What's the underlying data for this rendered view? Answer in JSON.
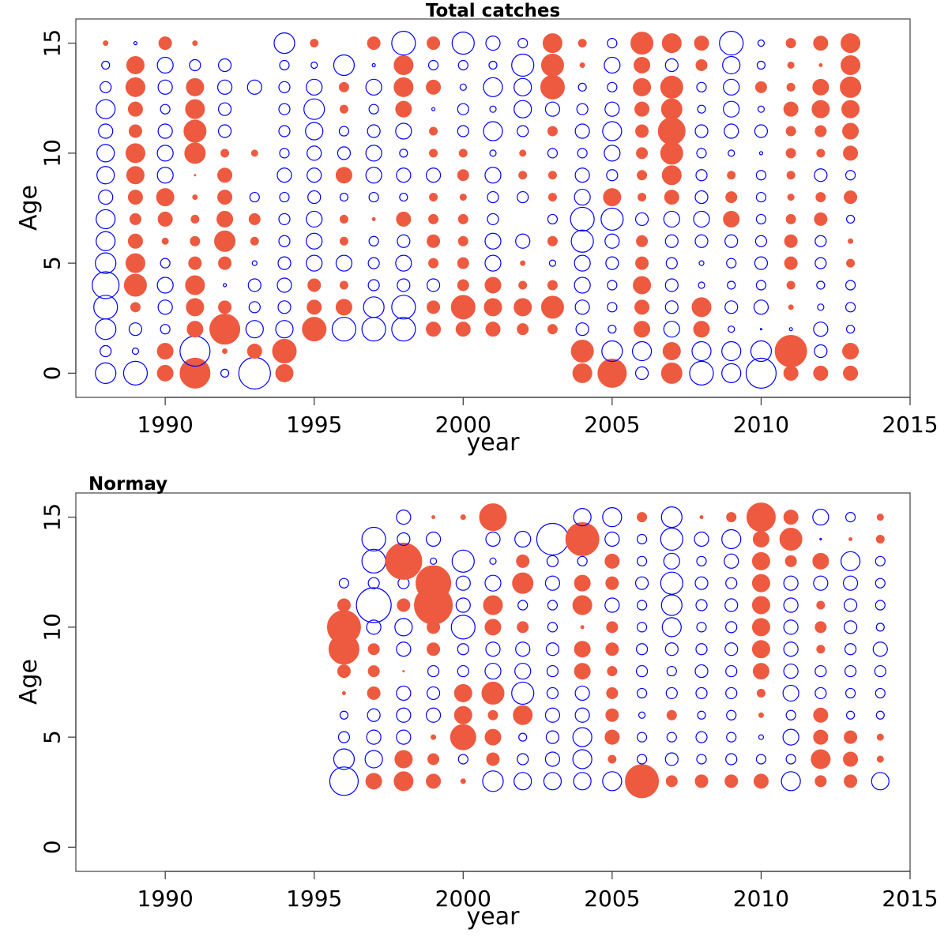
{
  "colors": {
    "positive": "#ee5a40",
    "negative": "#0000ff",
    "frame": "#444444"
  },
  "chart_data": [
    {
      "type": "scatter",
      "title": "Total catches",
      "xlabel": "year",
      "ylabel": "Age",
      "xlim": [
        1987,
        2015
      ],
      "ylim": [
        -1.1,
        16.1
      ],
      "xticks": [
        1990,
        1995,
        2000,
        2005,
        2010,
        2015
      ],
      "yticks": [
        0,
        5,
        10,
        15
      ],
      "encoding": "bubble size = magnitude; filled = positive; open = negative",
      "years": [
        1988,
        1989,
        1990,
        1991,
        1992,
        1993,
        1994,
        1995,
        1996,
        1997,
        1998,
        1999,
        2000,
        2001,
        2002,
        2003,
        2004,
        2005,
        2006,
        2007,
        2008,
        2009,
        2010,
        2011,
        2012,
        2013
      ],
      "ages": [
        0,
        1,
        2,
        3,
        4,
        5,
        6,
        7,
        8,
        9,
        10,
        11,
        12,
        13,
        14,
        15
      ],
      "magnitudes": [
        [
          -13,
          -7,
          -13,
          -15,
          -17,
          -13,
          -12,
          -12,
          -9,
          -11,
          -11,
          -9,
          -12,
          -7,
          -5,
          3
        ],
        [
          -15,
          -4,
          -8,
          6,
          14,
          12,
          9,
          7,
          9,
          11,
          12,
          8,
          9,
          12,
          11,
          -2
        ],
        [
          10,
          10,
          -6,
          -9,
          -10,
          -6,
          4,
          9,
          11,
          -10,
          -10,
          -9,
          -6,
          -9,
          -10,
          8
        ],
        [
          19,
          -19,
          10,
          11,
          12,
          8,
          6,
          5,
          3,
          1,
          13,
          14,
          12,
          11,
          -7,
          3
        ],
        [
          -5,
          3,
          19,
          8,
          -2,
          8,
          13,
          10,
          9,
          9,
          5,
          -8,
          -8,
          -9,
          -8,
          0
        ],
        [
          -20,
          9,
          -11,
          -7,
          -8,
          -3,
          5,
          7,
          -6,
          0,
          4,
          0,
          0,
          -9,
          0,
          0
        ],
        [
          11,
          15,
          -11,
          -8,
          -9,
          -8,
          -7,
          -7,
          -6,
          -9,
          -6,
          -7,
          -7,
          -7,
          -6,
          -13
        ],
        [
          0,
          0,
          15,
          9,
          8,
          -10,
          -10,
          -10,
          -8,
          -9,
          -9,
          -11,
          -13,
          -10,
          -4,
          5
        ],
        [
          0,
          0,
          -15,
          10,
          5,
          -10,
          5,
          5,
          -5,
          10,
          -8,
          -6,
          5,
          6,
          -13,
          0
        ],
        [
          0,
          0,
          -15,
          -13,
          -7,
          -7,
          -6,
          2,
          -6,
          -10,
          -10,
          -8,
          -6,
          -10,
          -2,
          8
        ],
        [
          0,
          0,
          -15,
          -15,
          -8,
          -10,
          -8,
          9,
          -5,
          -9,
          -5,
          -10,
          10,
          12,
          12,
          -15
        ],
        [
          0,
          0,
          9,
          8,
          -8,
          6,
          8,
          6,
          5,
          -9,
          5,
          5,
          -2,
          9,
          -6,
          8
        ],
        [
          0,
          0,
          9,
          15,
          7,
          7,
          6,
          6,
          4,
          7,
          5,
          -7,
          -7,
          -4,
          -6,
          -14
        ],
        [
          0,
          0,
          9,
          11,
          10,
          -10,
          -10,
          -7,
          -7,
          -10,
          -4,
          -12,
          -4,
          -12,
          -5,
          -9
        ],
        [
          0,
          0,
          7,
          11,
          5,
          3,
          -9,
          0,
          -7,
          5,
          4,
          -7,
          -11,
          -11,
          -14,
          -6
        ],
        [
          0,
          0,
          6,
          14,
          6,
          -4,
          6,
          -6,
          5,
          5,
          -6,
          6,
          -9,
          15,
          14,
          12
        ],
        [
          12,
          14,
          -8,
          -9,
          -10,
          -10,
          -14,
          -15,
          -10,
          -9,
          -6,
          -9,
          -7,
          -5,
          3,
          5
        ],
        [
          18,
          -13,
          -5,
          -6,
          -6,
          -8,
          -9,
          -14,
          11,
          -7,
          -10,
          -12,
          -9,
          -6,
          -10,
          -6
        ],
        [
          -8,
          -12,
          10,
          9,
          11,
          8,
          7,
          -8,
          5,
          6,
          7,
          8,
          9,
          11,
          10,
          14
        ],
        [
          13,
          11,
          -10,
          -8,
          -8,
          -7,
          -8,
          -10,
          9,
          12,
          14,
          17,
          13,
          14,
          -8,
          12
        ],
        [
          -15,
          -12,
          10,
          12,
          -4,
          -3,
          -8,
          -10,
          -8,
          -7,
          -6,
          -8,
          -5,
          -6,
          7,
          9
        ],
        [
          -12,
          -12,
          -4,
          -8,
          -5,
          -6,
          -8,
          10,
          7,
          5,
          -4,
          -9,
          -10,
          -10,
          -11,
          -15
        ],
        [
          -19,
          -13,
          -1,
          -9,
          -6,
          -8,
          -7,
          -6,
          -6,
          -6,
          -2,
          -8,
          -4,
          7,
          -5,
          -4
        ],
        [
          9,
          20,
          -2,
          3,
          5,
          8,
          8,
          6,
          4,
          5,
          6,
          6,
          9,
          5,
          4,
          6
        ],
        [
          9,
          -8,
          -9,
          -4,
          -5,
          -7,
          -7,
          8,
          6,
          -8,
          5,
          7,
          11,
          10,
          2,
          9
        ],
        [
          9,
          10,
          -5,
          -6,
          -6,
          5,
          3,
          -5,
          8,
          -6,
          9,
          10,
          11,
          13,
          12,
          12
        ]
      ]
    },
    {
      "type": "scatter",
      "title": "Normay",
      "xlabel": "year",
      "ylabel": "Age",
      "xlim": [
        1987,
        2015
      ],
      "ylim": [
        -1.1,
        16.1
      ],
      "xticks": [
        1990,
        1995,
        2000,
        2005,
        2010,
        2015
      ],
      "yticks": [
        0,
        5,
        10,
        15
      ],
      "encoding": "bubble size = magnitude; filled = positive; open = negative",
      "years": [
        1996,
        1997,
        1998,
        1999,
        2000,
        2001,
        2002,
        2003,
        2004,
        2005,
        2006,
        2007,
        2008,
        2009,
        2010,
        2011,
        2012,
        2013,
        2014
      ],
      "ages": [
        3,
        4,
        5,
        6,
        7,
        8,
        9,
        10,
        11,
        12,
        13,
        14,
        15
      ],
      "magnitudes": [
        [
          -18,
          -13,
          -7,
          -5,
          2,
          8,
          19,
          21,
          8,
          -6,
          0,
          0,
          0
        ],
        [
          10,
          -11,
          -9,
          -8,
          8,
          7,
          7,
          -9,
          -22,
          -7,
          -15,
          -15,
          0
        ],
        [
          12,
          11,
          -9,
          -9,
          -9,
          1,
          -9,
          -11,
          8,
          -7,
          23,
          -8,
          -9
        ],
        [
          9,
          7,
          3,
          -9,
          -8,
          -7,
          8,
          8,
          24,
          22,
          -4,
          -9,
          2
        ],
        [
          3,
          -6,
          16,
          11,
          11,
          -7,
          -7,
          -15,
          -9,
          -9,
          -14,
          0,
          3
        ],
        [
          -13,
          8,
          10,
          6,
          14,
          -10,
          -9,
          10,
          12,
          -10,
          -4,
          -9,
          17
        ],
        [
          -11,
          -7,
          -5,
          12,
          -14,
          -10,
          -9,
          7,
          -6,
          13,
          8,
          -10,
          0
        ],
        [
          -11,
          -9,
          -8,
          -9,
          -7,
          -7,
          -8,
          -6,
          -6,
          -9,
          -7,
          -20,
          0
        ],
        [
          -11,
          -12,
          -12,
          -9,
          -9,
          10,
          10,
          2,
          12,
          10,
          -6,
          21,
          -11
        ],
        [
          -12,
          5,
          9,
          8,
          7,
          6,
          8,
          7,
          -9,
          8,
          9,
          -9,
          -12
        ],
        [
          21,
          -6,
          -6,
          -4,
          -6,
          -7,
          -7,
          -6,
          -6,
          -8,
          -6,
          -6,
          6
        ],
        [
          7,
          -8,
          -6,
          6,
          -7,
          -6,
          -8,
          -12,
          -13,
          -14,
          -10,
          -14,
          -13
        ],
        [
          8,
          -6,
          -7,
          -5,
          -7,
          -8,
          -7,
          -6,
          -7,
          -8,
          -6,
          -9,
          2
        ],
        [
          8,
          -7,
          -6,
          -6,
          -7,
          -7,
          -8,
          -7,
          -8,
          -7,
          -9,
          -12,
          6
        ],
        [
          9,
          -6,
          -3,
          3,
          5,
          10,
          11,
          11,
          11,
          11,
          11,
          10,
          18
        ],
        [
          -12,
          -6,
          -10,
          -6,
          -10,
          -9,
          -9,
          -9,
          -9,
          -9,
          7,
          14,
          9
        ],
        [
          7,
          12,
          9,
          9,
          -7,
          -7,
          5,
          7,
          5,
          -9,
          10,
          -1,
          -10
        ],
        [
          8,
          9,
          8,
          -5,
          -6,
          -7,
          -7,
          -8,
          -8,
          -9,
          -12,
          2,
          -6
        ],
        [
          -11,
          4,
          4,
          -5,
          -6,
          -7,
          -9,
          -5,
          -6,
          -6,
          -6,
          5,
          4
        ]
      ]
    }
  ]
}
